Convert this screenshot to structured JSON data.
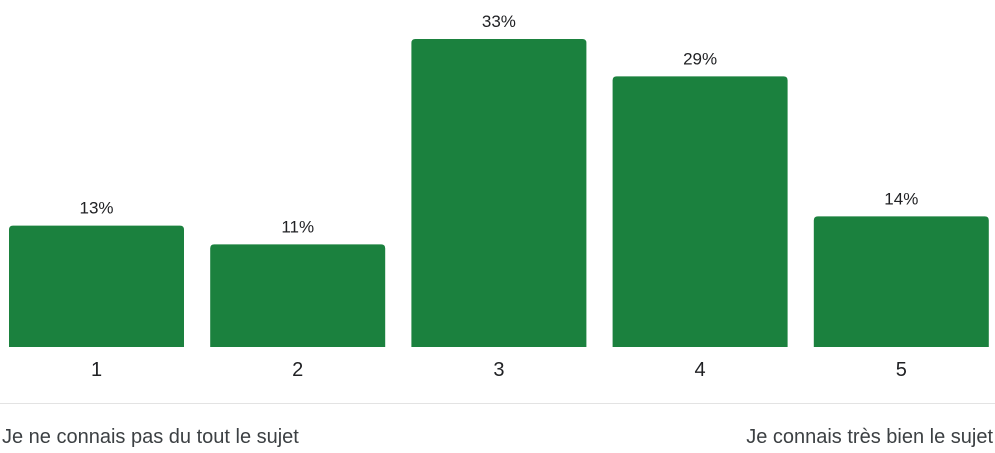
{
  "chart_data": {
    "type": "bar",
    "categories": [
      "1",
      "2",
      "3",
      "4",
      "5"
    ],
    "values": [
      13,
      11,
      33,
      29,
      14
    ],
    "value_labels": [
      "13%",
      "11%",
      "33%",
      "29%",
      "14%"
    ],
    "unit": "%",
    "ylim": [
      0,
      33
    ],
    "grid": false,
    "legend": "none",
    "bar_color": "#1b813e",
    "scale_low_label": "Je ne connais pas du tout le sujet",
    "scale_high_label": "Je connais très bien le sujet"
  }
}
